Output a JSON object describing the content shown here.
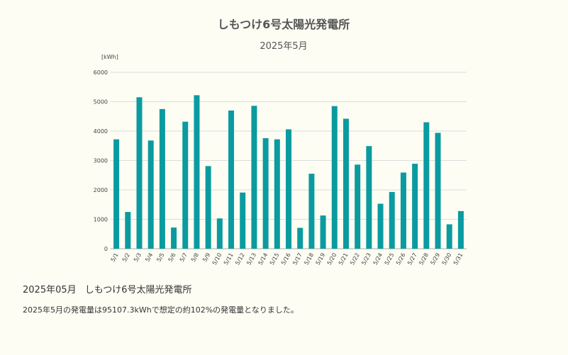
{
  "chart_data": {
    "type": "bar",
    "title": "しもつけ6号太陽光発電所",
    "subtitle": "2025年5月",
    "ylabel": "[kWh]",
    "ylim": [
      0,
      6000
    ],
    "yticks": [
      "0",
      "1000",
      "2000",
      "3000",
      "4000",
      "5000",
      "6000"
    ],
    "grid": true,
    "legend": "none",
    "color": "#0a9ba0",
    "categories": [
      "5/1",
      "5/2",
      "5/3",
      "5/4",
      "5/5",
      "5/6",
      "5/7",
      "5/8",
      "5/9",
      "5/10",
      "5/11",
      "5/12",
      "5/13",
      "5/14",
      "5/15",
      "5/16",
      "5/17",
      "5/18",
      "5/19",
      "5/20",
      "5/21",
      "5/22",
      "5/23",
      "5/24",
      "5/25",
      "5/26",
      "5/27",
      "5/28",
      "5/29",
      "5/30",
      "5/31"
    ],
    "values": [
      3720,
      1250,
      5150,
      3680,
      4750,
      720,
      4320,
      5220,
      2810,
      1030,
      4700,
      1910,
      4860,
      3760,
      3720,
      4060,
      710,
      2550,
      1130,
      4850,
      4420,
      2860,
      3490,
      1530,
      1930,
      2590,
      2890,
      4300,
      3940,
      830,
      1280
    ]
  },
  "caption": {
    "date": "2025年05月",
    "plant": "しもつけ6号太陽光発電所",
    "summary": "2025年5月の発電量は95107.3kWhで想定の約102%の発電量となりました。"
  }
}
